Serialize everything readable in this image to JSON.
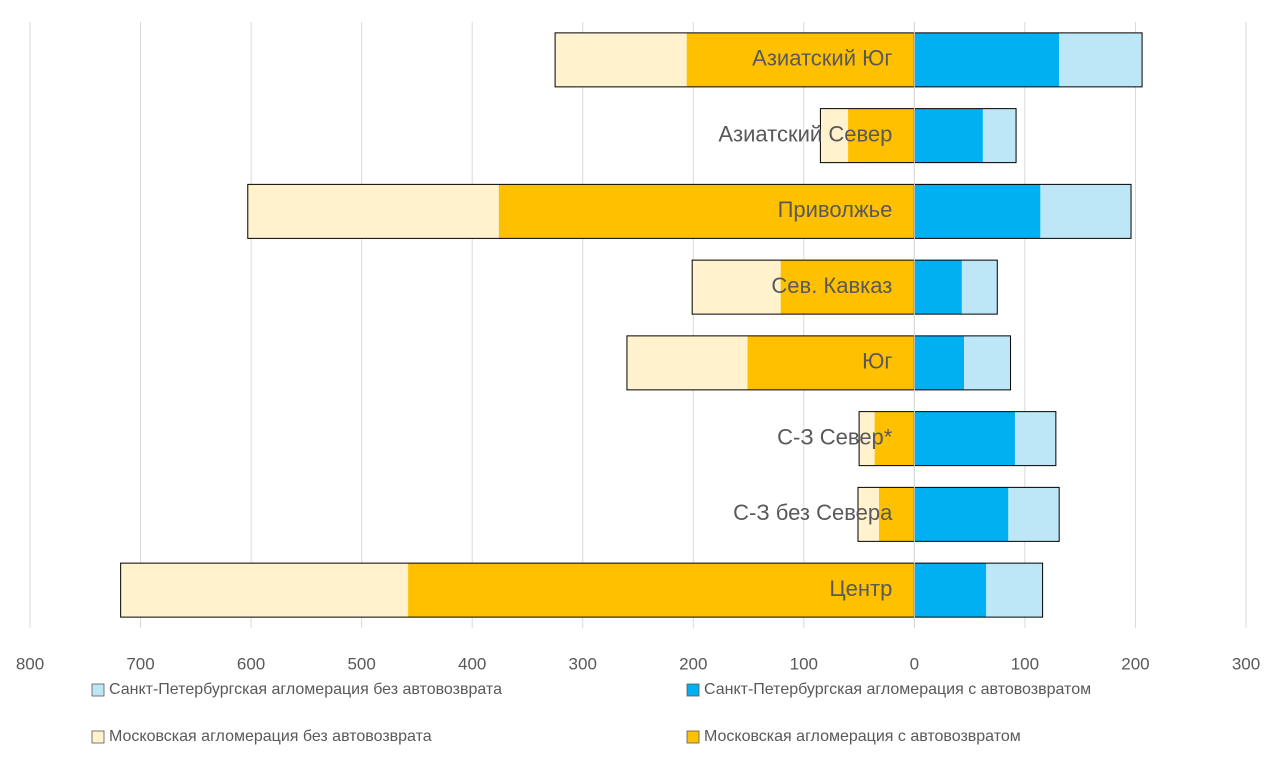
{
  "chart_data": {
    "type": "bar",
    "orientation": "horizontal",
    "stacked": true,
    "categories": [
      "Азиатский Юг",
      "Азиатский Север",
      "Приволжье",
      "Сев. Кавказ",
      "Юг",
      "С-З Север*",
      "С-З без Севера",
      "Центр"
    ],
    "series": [
      {
        "name": "Санкт-Петербургская агломерация без автовозврата",
        "color": "#bde7f7",
        "values": [
          75,
          30,
          82,
          32,
          42,
          37,
          46,
          51
        ]
      },
      {
        "name": "Санкт-Петербургская агломерация с автовозвратом",
        "color": "#00b0f0",
        "values": [
          131,
          62,
          114,
          43,
          45,
          91,
          85,
          65
        ]
      },
      {
        "name": "Московская агломерация без автовозврата",
        "color": "#fff2cc",
        "values": [
          -119,
          -25,
          -227,
          -80,
          -109,
          -14,
          -19,
          -260
        ]
      },
      {
        "name": "Московская агломерация с автовозвратом",
        "color": "#ffc000",
        "values": [
          -206,
          -60,
          -376,
          -121,
          -151,
          -36,
          -32,
          -458
        ]
      }
    ],
    "xlim": [
      -800,
      300
    ],
    "xticks": [
      {
        "value": -800,
        "label": "800"
      },
      {
        "value": -700,
        "label": "700"
      },
      {
        "value": -600,
        "label": "600"
      },
      {
        "value": -500,
        "label": "500"
      },
      {
        "value": -400,
        "label": "400"
      },
      {
        "value": -300,
        "label": "300"
      },
      {
        "value": -200,
        "label": "200"
      },
      {
        "value": -100,
        "label": "100"
      },
      0,
      100,
      200,
      300
    ],
    "grid": true
  }
}
